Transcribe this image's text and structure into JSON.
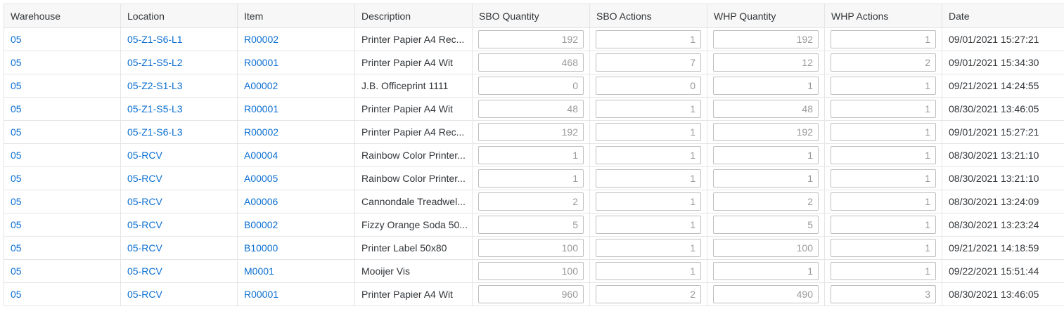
{
  "headers": [
    "Warehouse",
    "Location",
    "Item",
    "Description",
    "SBO Quantity",
    "SBO Actions",
    "WHP Quantity",
    "WHP Actions",
    "Date"
  ],
  "rows": [
    {
      "warehouse": "05",
      "location": "05-Z1-S6-L1",
      "item": "R00002",
      "description": "Printer Papier A4 Rec...",
      "sbo_qty": "192",
      "sbo_actions": "1",
      "whp_qty": "192",
      "whp_actions": "1",
      "date": "09/01/2021 15:27:21"
    },
    {
      "warehouse": "05",
      "location": "05-Z1-S5-L2",
      "item": "R00001",
      "description": "Printer Papier A4 Wit",
      "sbo_qty": "468",
      "sbo_actions": "7",
      "whp_qty": "12",
      "whp_actions": "2",
      "date": "09/01/2021 15:34:30"
    },
    {
      "warehouse": "05",
      "location": "05-Z2-S1-L3",
      "item": "A00002",
      "description": "J.B. Officeprint 1111",
      "sbo_qty": "0",
      "sbo_actions": "0",
      "whp_qty": "1",
      "whp_actions": "1",
      "date": "09/21/2021 14:24:55"
    },
    {
      "warehouse": "05",
      "location": "05-Z1-S5-L3",
      "item": "R00001",
      "description": "Printer Papier A4 Wit",
      "sbo_qty": "48",
      "sbo_actions": "1",
      "whp_qty": "48",
      "whp_actions": "1",
      "date": "08/30/2021 13:46:05"
    },
    {
      "warehouse": "05",
      "location": "05-Z1-S6-L3",
      "item": "R00002",
      "description": "Printer Papier A4 Rec...",
      "sbo_qty": "192",
      "sbo_actions": "1",
      "whp_qty": "192",
      "whp_actions": "1",
      "date": "09/01/2021 15:27:21"
    },
    {
      "warehouse": "05",
      "location": "05-RCV",
      "item": "A00004",
      "description": "Rainbow Color Printer...",
      "sbo_qty": "1",
      "sbo_actions": "1",
      "whp_qty": "1",
      "whp_actions": "1",
      "date": "08/30/2021 13:21:10"
    },
    {
      "warehouse": "05",
      "location": "05-RCV",
      "item": "A00005",
      "description": "Rainbow Color Printer...",
      "sbo_qty": "1",
      "sbo_actions": "1",
      "whp_qty": "1",
      "whp_actions": "1",
      "date": "08/30/2021 13:21:10"
    },
    {
      "warehouse": "05",
      "location": "05-RCV",
      "item": "A00006",
      "description": "Cannondale Treadwel...",
      "sbo_qty": "2",
      "sbo_actions": "1",
      "whp_qty": "2",
      "whp_actions": "1",
      "date": "08/30/2021 13:24:09"
    },
    {
      "warehouse": "05",
      "location": "05-RCV",
      "item": "B00002",
      "description": "Fizzy Orange Soda 50...",
      "sbo_qty": "5",
      "sbo_actions": "1",
      "whp_qty": "5",
      "whp_actions": "1",
      "date": "08/30/2021 13:23:24"
    },
    {
      "warehouse": "05",
      "location": "05-RCV",
      "item": "B10000",
      "description": "Printer Label 50x80",
      "sbo_qty": "100",
      "sbo_actions": "1",
      "whp_qty": "100",
      "whp_actions": "1",
      "date": "09/21/2021 14:18:59"
    },
    {
      "warehouse": "05",
      "location": "05-RCV",
      "item": "M0001",
      "description": "Mooijer Vis",
      "sbo_qty": "100",
      "sbo_actions": "1",
      "whp_qty": "1",
      "whp_actions": "1",
      "date": "09/22/2021 15:51:44"
    },
    {
      "warehouse": "05",
      "location": "05-RCV",
      "item": "R00001",
      "description": "Printer Papier A4 Wit",
      "sbo_qty": "960",
      "sbo_actions": "2",
      "whp_qty": "490",
      "whp_actions": "3",
      "date": "08/30/2021 13:46:05"
    }
  ],
  "colors": {
    "link": "#0a6ed1",
    "border": "#e5e5e5",
    "header_bg": "#f7f7f7"
  }
}
